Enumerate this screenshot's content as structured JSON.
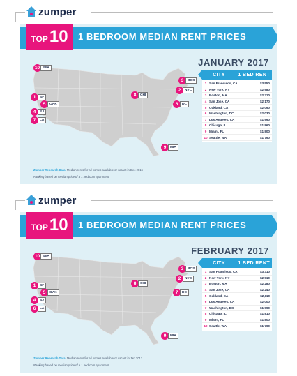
{
  "brand": {
    "name": "zumper"
  },
  "panels": [
    {
      "top_label": "TOP",
      "top_number": "10",
      "title": "1 BEDROOM MEDIAN RENT PRICES",
      "month": "JANUARY 2017",
      "table_header": {
        "city": "CITY",
        "rent": "1 BED RENT"
      },
      "rows": [
        {
          "rank": "1",
          "city": "San Francisco, CA",
          "price": "$3,550"
        },
        {
          "rank": "2",
          "city": "New York, NY",
          "price": "$2,980"
        },
        {
          "rank": "3",
          "city": "Boston, MA",
          "price": "$2,310"
        },
        {
          "rank": "4",
          "city": "San Jose, CA",
          "price": "$2,170"
        },
        {
          "rank": "5",
          "city": "Oakland, CA",
          "price": "$2,090"
        },
        {
          "rank": "6",
          "city": "Washington, DC",
          "price": "$2,030"
        },
        {
          "rank": "7",
          "city": "Los Angeles, CA",
          "price": "$1,990"
        },
        {
          "rank": "8",
          "city": "Chicago, IL",
          "price": "$1,860"
        },
        {
          "rank": "9",
          "city": "Miami, FL",
          "price": "$1,800"
        },
        {
          "rank": "10",
          "city": "Seattle, WA",
          "price": "$1,790"
        }
      ],
      "pins": [
        {
          "rank": "10",
          "label": "SEA"
        },
        {
          "rank": "1",
          "label": "SF"
        },
        {
          "rank": "5",
          "label": "OAK"
        },
        {
          "rank": "4",
          "label": "SJ"
        },
        {
          "rank": "7",
          "label": "LA"
        },
        {
          "rank": "8",
          "label": "CHI"
        },
        {
          "rank": "3",
          "label": "BOS"
        },
        {
          "rank": "2",
          "label": "NYC"
        },
        {
          "rank": "6",
          "label": "DC"
        },
        {
          "rank": "9",
          "label": "MIA"
        }
      ],
      "footnote_source": "Zumper Research Data",
      "footnote_text": ": Median rents for all homes available or vacant in Dec 2016",
      "footnote_line2": "Ranking based on median price of a 1 bedroom apartment."
    },
    {
      "top_label": "TOP",
      "top_number": "10",
      "title": "1 BEDROOM MEDIAN RENT PRICES",
      "month": "FEBRUARY 2017",
      "table_header": {
        "city": "CITY",
        "rent": "1 BED RENT"
      },
      "rows": [
        {
          "rank": "1",
          "city": "San Francisco, CA",
          "price": "$3,310"
        },
        {
          "rank": "2",
          "city": "New York, NY",
          "price": "$2,910"
        },
        {
          "rank": "3",
          "city": "Boston, MA",
          "price": "$2,280"
        },
        {
          "rank": "4",
          "city": "San Jose, CA",
          "price": "$2,240"
        },
        {
          "rank": "5",
          "city": "Oakland, CA",
          "price": "$2,110"
        },
        {
          "rank": "6",
          "city": "Los Angeles, CA",
          "price": "$2,000"
        },
        {
          "rank": "7",
          "city": "Washington, DC",
          "price": "$1,990"
        },
        {
          "rank": "8",
          "city": "Chicago, IL",
          "price": "$1,810"
        },
        {
          "rank": "9",
          "city": "Miami, FL",
          "price": "$1,800"
        },
        {
          "rank": "10",
          "city": "Seattle, WA",
          "price": "$1,790"
        }
      ],
      "pins": [
        {
          "rank": "10",
          "label": "SEA"
        },
        {
          "rank": "1",
          "label": "SF"
        },
        {
          "rank": "5",
          "label": "OAK"
        },
        {
          "rank": "4",
          "label": "SJ"
        },
        {
          "rank": "6",
          "label": "LA"
        },
        {
          "rank": "8",
          "label": "CHI"
        },
        {
          "rank": "3",
          "label": "BOS"
        },
        {
          "rank": "2",
          "label": "NYC"
        },
        {
          "rank": "7",
          "label": "DC"
        },
        {
          "rank": "9",
          "label": "MIA"
        }
      ],
      "footnote_source": "Zumper Research Data",
      "footnote_text": ": Median rents for all homes available or vacant in Jan 2017",
      "footnote_line2": "Ranking based on median price of a 1 bedroom apartment."
    }
  ],
  "colors": {
    "accent_pink": "#e8157d",
    "accent_blue": "#2aa3d8",
    "card_bg": "#dff0f6",
    "map_gray": "#cfcfcf"
  }
}
